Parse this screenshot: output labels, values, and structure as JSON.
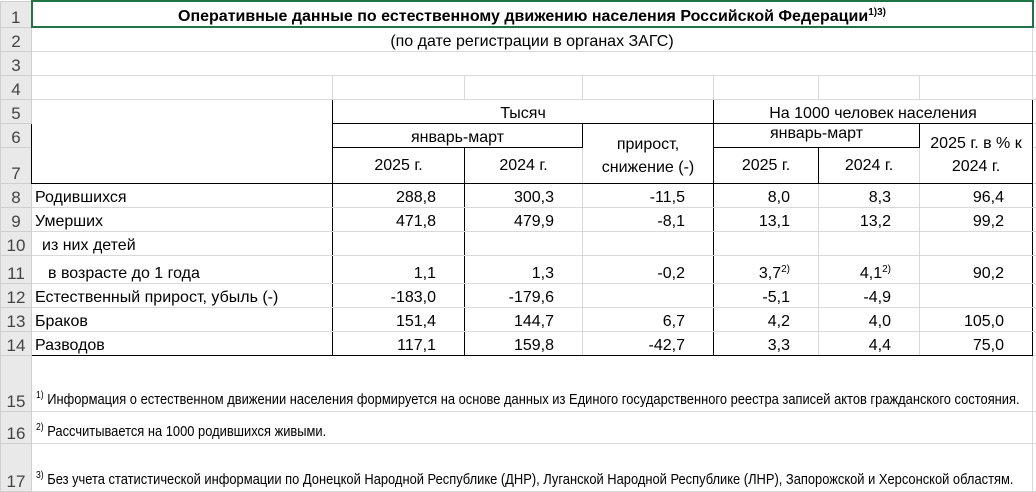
{
  "title": "Оперативные данные по естественному движению населения Российской Федерации",
  "title_sup": "1)3)",
  "subtitle": "(по дате регистрации в органах ЗАГС)",
  "row_numbers": [
    "1",
    "2",
    "3",
    "4",
    "5",
    "6",
    "7",
    "8",
    "9",
    "10",
    "11",
    "12",
    "13",
    "14",
    "15",
    "16",
    "17"
  ],
  "header": {
    "thousands": "Тысяч",
    "per_1000": "На 1000 человек населения",
    "jan_mar_1": "январь-март",
    "jan_mar_2": "январь-март",
    "change": "прирост, снижение (-)",
    "pct": "2025 г. в % к 2024 г.",
    "y2025_1": "2025 г.",
    "y2024_1": "2024 г.",
    "y2025_2": "2025 г.",
    "y2024_2": "2024 г."
  },
  "rows": [
    {
      "label": "Родившихся",
      "values": [
        "288,8",
        "300,3",
        "-11,5",
        "8,0",
        "8,3",
        "96,4"
      ]
    },
    {
      "label": "Умерших",
      "values": [
        "471,8",
        "479,9",
        "-8,1",
        "13,1",
        "13,2",
        "99,2"
      ]
    },
    {
      "label": "из них детей",
      "values": [
        "",
        "",
        "",
        "",
        "",
        ""
      ]
    },
    {
      "label": "в возрасте до 1 года",
      "values": [
        "1,1",
        "1,3",
        "-0,2",
        "3,7",
        "4,1",
        "90,2"
      ],
      "sups": [
        "",
        "",
        "",
        "2)",
        "2)",
        ""
      ]
    },
    {
      "label": "Естественный прирост, убыль (-)",
      "values": [
        "-183,0",
        "-179,6",
        "",
        "-5,1",
        "-4,9",
        ""
      ]
    },
    {
      "label": "Браков",
      "values": [
        "151,4",
        "144,7",
        "6,7",
        "4,2",
        "4,0",
        "105,0"
      ]
    },
    {
      "label": "Разводов",
      "values": [
        "117,1",
        "159,8",
        "-42,7",
        "3,3",
        "4,4",
        "75,0"
      ]
    }
  ],
  "footnotes": [
    {
      "mark": "1)",
      "text": "Информация о естественном движении населения формируется на основе данных из Единого государственного реестра записей актов гражданского состояния."
    },
    {
      "mark": "2)",
      "text": "Рассчитывается на 1000 родившихся живыми."
    },
    {
      "mark": "3)",
      "text": "Без учета статистической информации по Донецкой Народной Республике (ДНР), Луганской Народной Республике (ЛНР), Запорожской и Херсонской областям."
    }
  ],
  "colors": {
    "selection_border": "#217346",
    "row_header_bg": "#e9e9e9",
    "gridline": "#d9d9d9"
  }
}
